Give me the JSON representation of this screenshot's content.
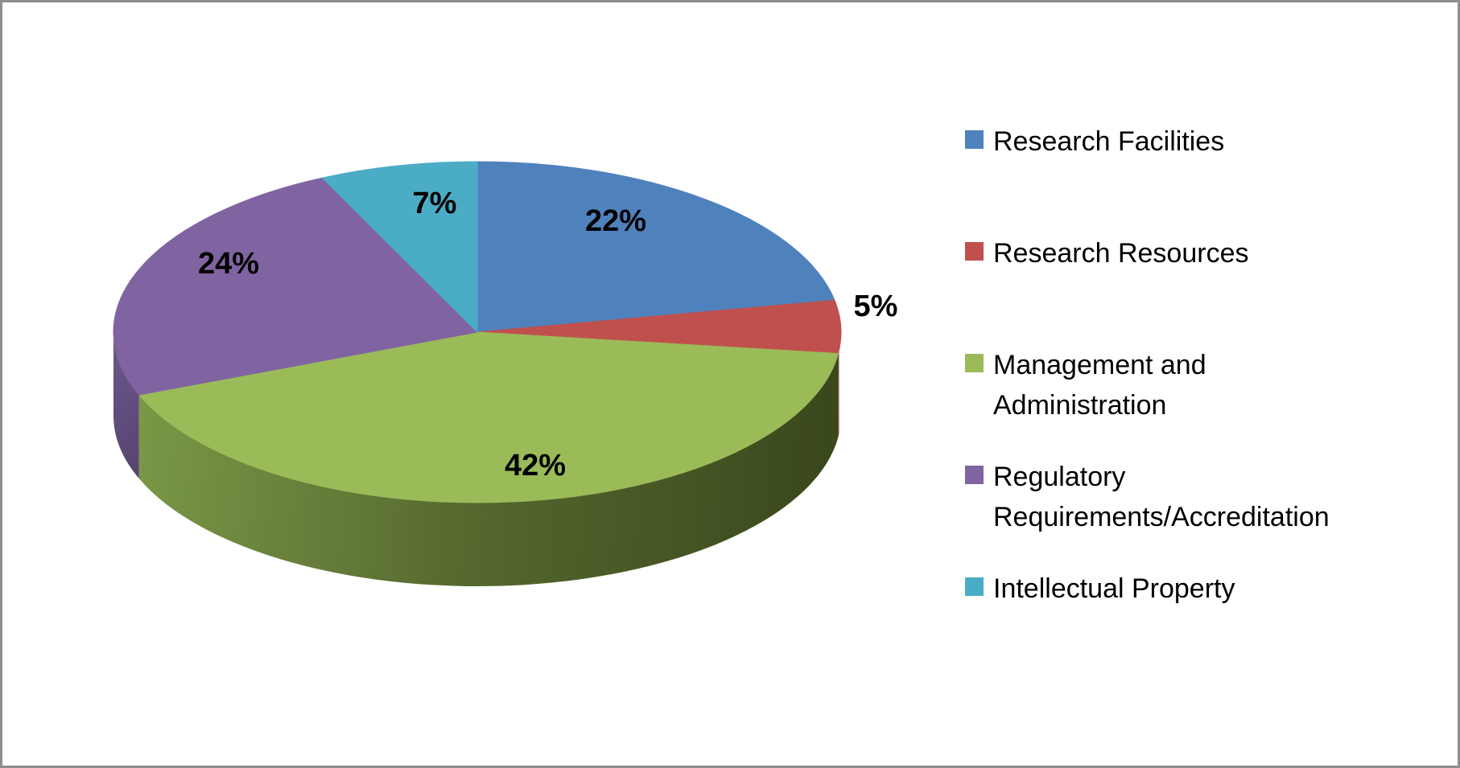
{
  "canvas": {
    "background": "#FFFFFF",
    "border_color": "#8E8E8E"
  },
  "chart_data": {
    "type": "pie",
    "three_d": true,
    "title": "",
    "legend_position": "right",
    "start_angle_deg": 0,
    "direction": "clockwise",
    "data_label_format": "percent",
    "data_label_color": "#000000",
    "slices": [
      {
        "label": "Research Facilities",
        "value": 22,
        "display": "22%",
        "color": "#4F81BD"
      },
      {
        "label": "Research Resources",
        "value": 5,
        "display": "5%",
        "color": "#C0504D"
      },
      {
        "label": "Management and Administration",
        "value": 42,
        "display": "42%",
        "color": "#9BBB59"
      },
      {
        "label": "Regulatory Requirements/Accreditation",
        "value": 24,
        "display": "24%",
        "color": "#8064A2"
      },
      {
        "label": "Intellectual Property",
        "value": 7,
        "display": "7%",
        "color": "#4BACC6"
      }
    ]
  }
}
